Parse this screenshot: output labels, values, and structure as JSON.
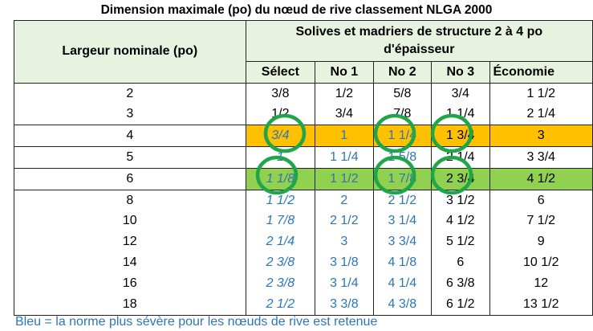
{
  "title": "Dimension maximale (po) du nœud de rive classement NLGA 2000",
  "header": {
    "row_label": "Largeur nominale (po)",
    "group_label": "Solives et madriers de structure 2 à 4 po d'épaisseur",
    "grades": [
      "Sélect",
      "No 1",
      "No 2",
      "No 3",
      "Économie"
    ]
  },
  "rows": [
    {
      "width": "2",
      "values": [
        "3/8",
        "1/2",
        "5/8",
        "3/4",
        "1 1/2"
      ]
    },
    {
      "width": "3",
      "values": [
        "1/2",
        "3/4",
        "7/8",
        "1 1/4",
        "2 1/4"
      ]
    },
    {
      "width": "4",
      "values": [
        "3/4",
        "1",
        "1 1/4",
        "1 3/4",
        "3"
      ]
    },
    {
      "width": "5",
      "values": [
        "1",
        "1 1/4",
        "1 5/8",
        "2 1/4",
        "3 3/4"
      ]
    },
    {
      "width": "6",
      "values": [
        "1 1/8",
        "1 1/2",
        "1 7/8",
        "2 3/4",
        "4 1/2"
      ]
    },
    {
      "width": "8",
      "values": [
        "1 1/2",
        "2",
        "2 1/2",
        "3 1/2",
        "6"
      ]
    },
    {
      "width": "10",
      "values": [
        "1 7/8",
        "2 1/2",
        "3 1/4",
        "4 1/2",
        "7 1/2"
      ]
    },
    {
      "width": "12",
      "values": [
        "2 1/4",
        "3",
        "3 3/4",
        "5 1/2",
        "9"
      ]
    },
    {
      "width": "14",
      "values": [
        "2 3/8",
        "3 1/8",
        "4 1/8",
        "6",
        "10 1/2"
      ]
    },
    {
      "width": "16",
      "values": [
        "2 3/8",
        "3 1/4",
        "4 1/4",
        "6 3/8",
        "12"
      ]
    },
    {
      "width": "18",
      "values": [
        "2 1/2",
        "3 3/8",
        "4 3/8",
        "6 1/2",
        "13 1/2"
      ]
    }
  ],
  "footer": "Bleu = la norme plus sévère pour les nœuds de rive est retenue",
  "colors": {
    "blue_text": "#2e75b6",
    "highlight_orange": "#ffc000",
    "highlight_green": "#92d050",
    "circle": "#1fa64a",
    "header_bg": "#e8f3df"
  }
}
